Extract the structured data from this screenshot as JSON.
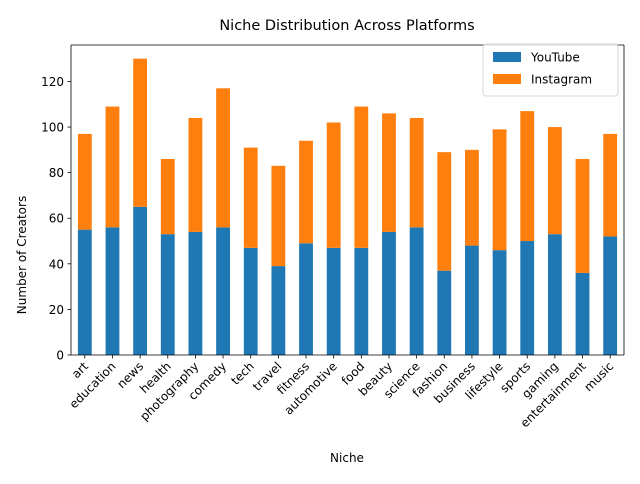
{
  "chart_data": {
    "type": "bar",
    "stacked": true,
    "title": "Niche Distribution Across Platforms",
    "xlabel": "Niche",
    "ylabel": "Number of Creators",
    "ylim": [
      0,
      136
    ],
    "yticks": [
      0,
      20,
      40,
      60,
      80,
      100,
      120
    ],
    "grid": false,
    "legend_position": "top-right",
    "categories": [
      "art",
      "education",
      "news",
      "health",
      "photography",
      "comedy",
      "tech",
      "travel",
      "fitness",
      "automotive",
      "food",
      "beauty",
      "science",
      "fashion",
      "business",
      "lifestyle",
      "sports",
      "gaming",
      "entertainment",
      "music"
    ],
    "series": [
      {
        "name": "YouTube",
        "color": "#1f77b4",
        "values": [
          55,
          56,
          65,
          53,
          54,
          56,
          47,
          39,
          49,
          47,
          47,
          54,
          56,
          37,
          48,
          46,
          50,
          53,
          36,
          52
        ]
      },
      {
        "name": "Instagram",
        "color": "#ff7f0e",
        "values": [
          42,
          53,
          65,
          33,
          50,
          61,
          44,
          44,
          45,
          55,
          62,
          52,
          48,
          52,
          42,
          53,
          57,
          47,
          50,
          45
        ]
      }
    ]
  }
}
